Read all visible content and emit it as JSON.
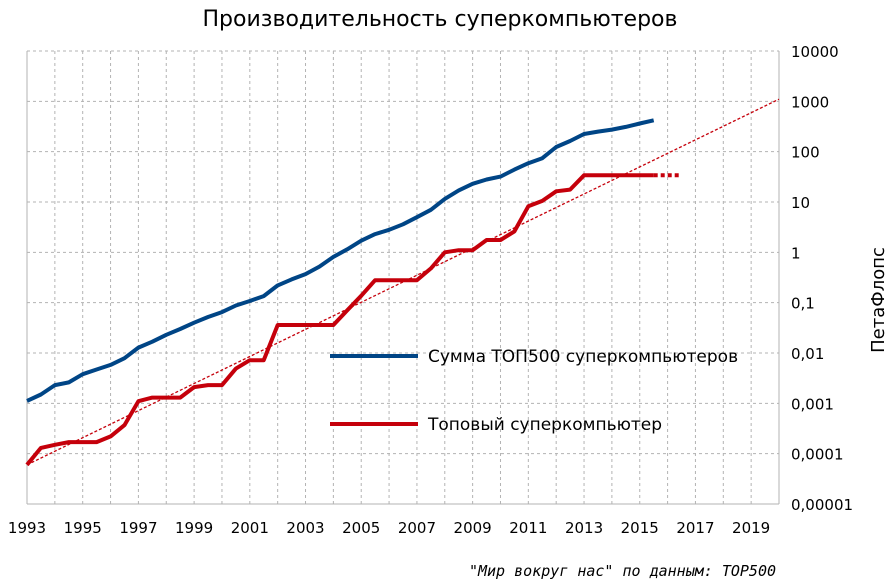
{
  "chart_data": {
    "type": "line",
    "title": "Производительность суперкомпьютеров",
    "xlabel": "",
    "ylabel": "ПетаФлопс",
    "source": "\"Мир вокруг нас\" по данным: TOP500",
    "xlim": [
      1993,
      2020
    ],
    "ylim": [
      1e-05,
      10000
    ],
    "yscale": "log",
    "x_ticks": [
      "1993",
      "1995",
      "1997",
      "1999",
      "2001",
      "2003",
      "2005",
      "2007",
      "2009",
      "2011",
      "2013",
      "2015",
      "2017",
      "2019"
    ],
    "y_ticks": [
      "0,00001",
      "0,0001",
      "0,001",
      "0,01",
      "0,1",
      "1",
      "10",
      "100",
      "1000",
      "10000"
    ],
    "grid": true,
    "legend_position": "center-right",
    "series": [
      {
        "name": "Сумма ТОП500 суперкомпьютеров",
        "color": "#004586",
        "x": [
          1993,
          1993.5,
          1994,
          1994.5,
          1995,
          1995.5,
          1996,
          1996.5,
          1997,
          1997.5,
          1998,
          1998.5,
          1999,
          1999.5,
          2000,
          2000.5,
          2001,
          2001.5,
          2002,
          2002.5,
          2003,
          2003.5,
          2004,
          2004.5,
          2005,
          2005.5,
          2006,
          2006.5,
          2007,
          2007.5,
          2008,
          2008.5,
          2009,
          2009.5,
          2010,
          2010.5,
          2011,
          2011.5,
          2012,
          2012.5,
          2013,
          2013.5,
          2014,
          2014.5,
          2015,
          2015.5
        ],
        "values": [
          0.00112,
          0.0015,
          0.0023,
          0.0026,
          0.0038,
          0.0047,
          0.0058,
          0.0079,
          0.0128,
          0.0168,
          0.023,
          0.03,
          0.04,
          0.052,
          0.065,
          0.088,
          0.108,
          0.135,
          0.22,
          0.29,
          0.37,
          0.52,
          0.81,
          1.15,
          1.7,
          2.3,
          2.8,
          3.6,
          5.0,
          7.0,
          11.5,
          17,
          23,
          28,
          32,
          44,
          59,
          74,
          124,
          163,
          224,
          250,
          275,
          310,
          363,
          420
        ]
      },
      {
        "name": "Топовый суперкомпьютер",
        "color": "#c5000b",
        "x": [
          1993,
          1993.5,
          1994,
          1994.5,
          1995,
          1995.5,
          1996,
          1996.5,
          1997,
          1997.5,
          1998,
          1998.5,
          1999,
          1999.5,
          2000,
          2000.5,
          2001,
          2001.5,
          2002,
          2002.5,
          2003,
          2003.5,
          2004,
          2004.5,
          2005,
          2005.5,
          2006,
          2006.5,
          2007,
          2007.5,
          2008,
          2008.5,
          2009,
          2009.5,
          2010,
          2010.5,
          2011,
          2011.5,
          2012,
          2012.5,
          2013,
          2013.5,
          2014,
          2014.5,
          2015,
          2015.5
        ],
        "values": [
          6e-05,
          0.00013,
          0.00015,
          0.00017,
          0.00017,
          0.00017,
          0.00022,
          0.00037,
          0.0011,
          0.0013,
          0.0013,
          0.0013,
          0.0021,
          0.0023,
          0.0023,
          0.0049,
          0.0072,
          0.0072,
          0.036,
          0.036,
          0.036,
          0.036,
          0.036,
          0.071,
          0.137,
          0.28,
          0.28,
          0.28,
          0.28,
          0.48,
          1.0,
          1.1,
          1.1,
          1.76,
          1.76,
          2.6,
          8.2,
          10.5,
          16.3,
          17.6,
          33.9,
          33.9,
          33.9,
          33.9,
          33.9,
          33.9
        ]
      },
      {
        "name": "",
        "color": "#c5000b",
        "style": "dotted",
        "x": [
          2015.5,
          2016.5
        ],
        "values": [
          33.9,
          33.9
        ]
      },
      {
        "name": "",
        "color": "#c5000b",
        "style": "dotted-trend",
        "x": [
          1993,
          2020
        ],
        "values": [
          6e-05,
          1100
        ]
      }
    ]
  }
}
